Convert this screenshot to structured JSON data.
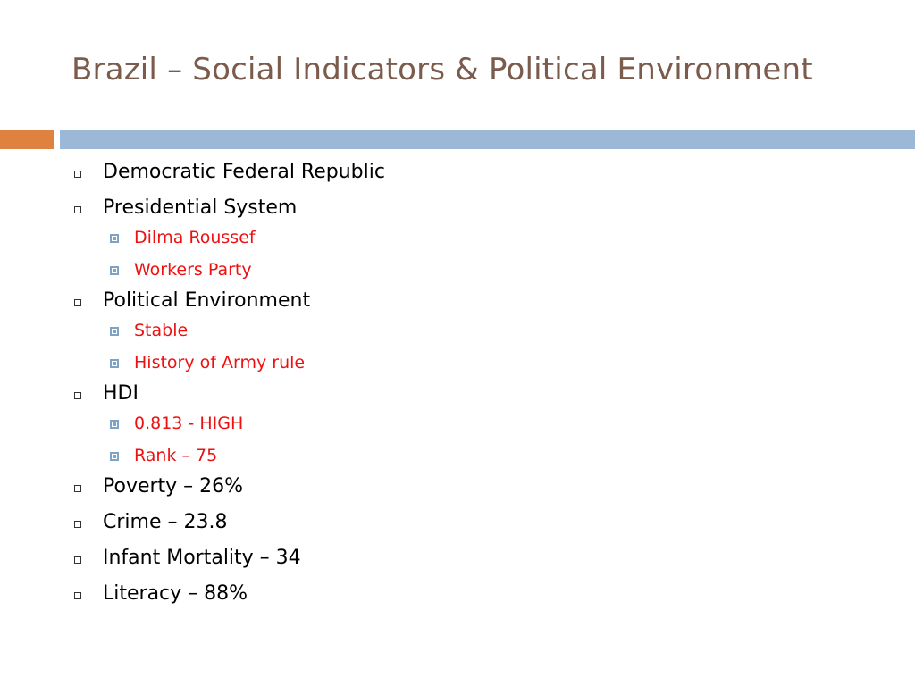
{
  "title": "Brazil – Social Indicators & Political Environment",
  "colors": {
    "title": "#7a5b4c",
    "bar_left": "#e0823f",
    "bar_right": "#9bb9d6",
    "sub_text": "#ee1111",
    "main_text": "#000000"
  },
  "bullets": [
    {
      "text": "Democratic Federal Republic",
      "sub": []
    },
    {
      "text": "Presidential System",
      "sub": [
        "Dilma Roussef",
        "Workers Party"
      ]
    },
    {
      "text": "Political Environment",
      "sub": [
        "Stable",
        "History of Army rule"
      ]
    },
    {
      "text": "HDI",
      "sub": [
        "0.813 - HIGH",
        "Rank – 75"
      ]
    },
    {
      "text": "Poverty – 26%",
      "sub": []
    },
    {
      "text": "Crime – 23.8",
      "sub": []
    },
    {
      "text": "Infant Mortality – 34",
      "sub": []
    },
    {
      "text": "Literacy – 88%",
      "sub": []
    }
  ]
}
